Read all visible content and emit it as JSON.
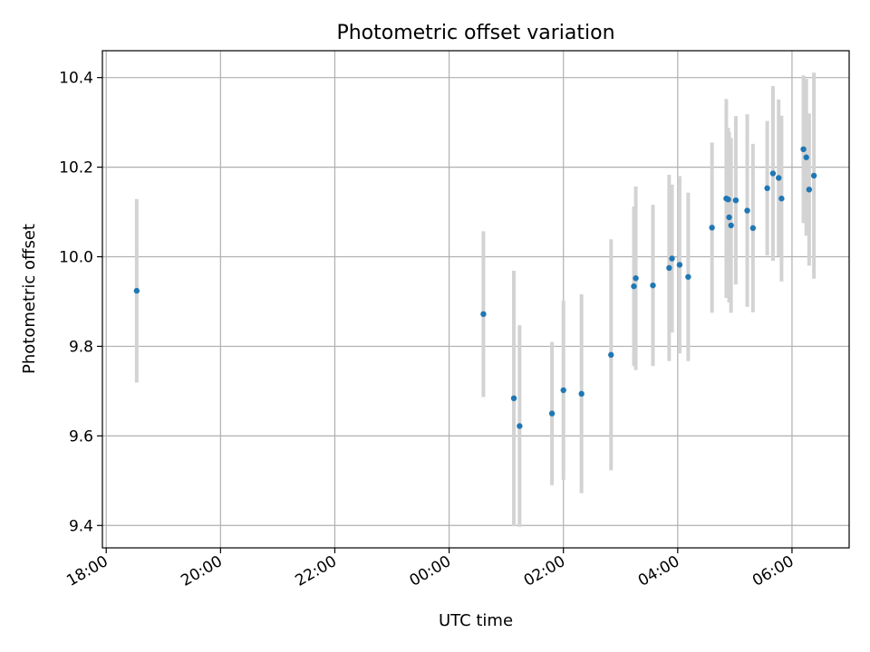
{
  "chart_data": {
    "type": "scatter",
    "title": "Photometric offset variation",
    "xlabel": "UTC time",
    "ylabel": "Photometric offset",
    "x_axis": "time",
    "xlim": [
      "18:00",
      "07:00"
    ],
    "ylim": [
      9.35,
      10.46
    ],
    "x_ticks": [
      "18:00",
      "20:00",
      "22:00",
      "00:00",
      "02:00",
      "04:00",
      "06:00"
    ],
    "y_ticks": [
      9.4,
      9.6,
      9.8,
      10.0,
      10.2,
      10.4
    ],
    "y_tick_labels": [
      "9.4",
      "9.6",
      "9.8",
      "10.0",
      "10.2",
      "10.4"
    ],
    "grid": true,
    "colors": {
      "marker": "#1f77b4",
      "errorbar": "#d3d3d3",
      "grid": "#b0b0b0"
    },
    "points": [
      {
        "t": "18:32",
        "y": 9.924,
        "err": 0.205
      },
      {
        "t": "00:36",
        "y": 9.872,
        "err": 0.185
      },
      {
        "t": "01:08",
        "y": 9.684,
        "err": 0.285
      },
      {
        "t": "01:14",
        "y": 9.622,
        "err": 0.225
      },
      {
        "t": "01:48",
        "y": 9.65,
        "err": 0.16
      },
      {
        "t": "02:00",
        "y": 9.702,
        "err": 0.2
      },
      {
        "t": "02:19",
        "y": 9.694,
        "err": 0.222
      },
      {
        "t": "02:50",
        "y": 9.781,
        "err": 0.258
      },
      {
        "t": "03:14",
        "y": 9.934,
        "err": 0.178
      },
      {
        "t": "03:16",
        "y": 9.952,
        "err": 0.205
      },
      {
        "t": "03:34",
        "y": 9.936,
        "err": 0.18
      },
      {
        "t": "03:51",
        "y": 9.975,
        "err": 0.208
      },
      {
        "t": "03:54",
        "y": 9.996,
        "err": 0.165
      },
      {
        "t": "04:02",
        "y": 9.982,
        "err": 0.198
      },
      {
        "t": "04:11",
        "y": 9.955,
        "err": 0.188
      },
      {
        "t": "04:36",
        "y": 10.065,
        "err": 0.19
      },
      {
        "t": "04:51",
        "y": 10.13,
        "err": 0.222
      },
      {
        "t": "04:53",
        "y": 10.128,
        "err": 0.16
      },
      {
        "t": "04:54",
        "y": 10.088,
        "err": 0.19
      },
      {
        "t": "04:56",
        "y": 10.07,
        "err": 0.195
      },
      {
        "t": "05:01",
        "y": 10.126,
        "err": 0.188
      },
      {
        "t": "05:13",
        "y": 10.103,
        "err": 0.215
      },
      {
        "t": "05:19",
        "y": 10.064,
        "err": 0.188
      },
      {
        "t": "05:34",
        "y": 10.153,
        "err": 0.15
      },
      {
        "t": "05:40",
        "y": 10.186,
        "err": 0.195
      },
      {
        "t": "05:46",
        "y": 10.176,
        "err": 0.175
      },
      {
        "t": "05:49",
        "y": 10.13,
        "err": 0.185
      },
      {
        "t": "06:12",
        "y": 10.24,
        "err": 0.165
      },
      {
        "t": "06:15",
        "y": 10.222,
        "err": 0.175
      },
      {
        "t": "06:18",
        "y": 10.15,
        "err": 0.17
      },
      {
        "t": "06:23",
        "y": 10.181,
        "err": 0.23
      }
    ]
  }
}
